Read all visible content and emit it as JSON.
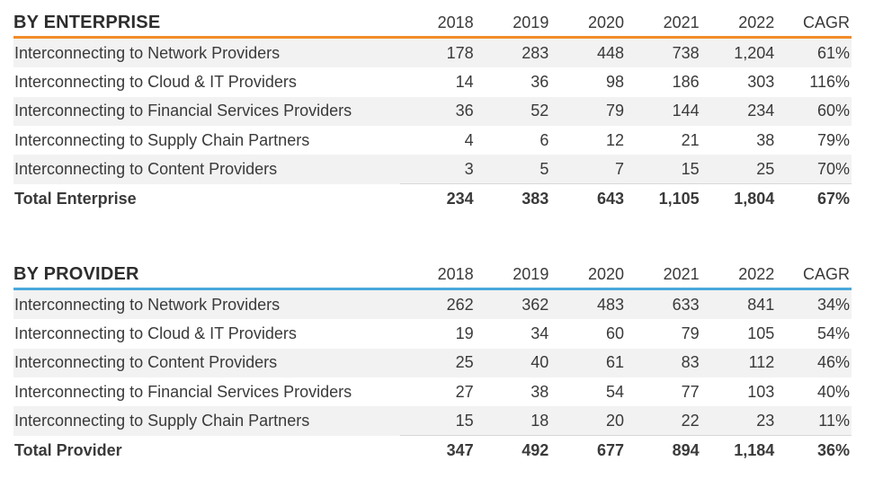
{
  "chart_data": [
    {
      "type": "table",
      "title": "BY ENTERPRISE",
      "columns": [
        "2018",
        "2019",
        "2020",
        "2021",
        "2022",
        "CAGR"
      ],
      "rows": [
        {
          "label": "Interconnecting to Network Providers",
          "values": [
            "178",
            "283",
            "448",
            "738",
            "1,204",
            "61%"
          ]
        },
        {
          "label": "Interconnecting to Cloud & IT Providers",
          "values": [
            "14",
            "36",
            "98",
            "186",
            "303",
            "116%"
          ]
        },
        {
          "label": "Interconnecting to Financial Services Providers",
          "values": [
            "36",
            "52",
            "79",
            "144",
            "234",
            "60%"
          ]
        },
        {
          "label": "Interconnecting to Supply Chain Partners",
          "values": [
            "4",
            "6",
            "12",
            "21",
            "38",
            "79%"
          ]
        },
        {
          "label": "Interconnecting to Content Providers",
          "values": [
            "3",
            "5",
            "7",
            "15",
            "25",
            "70%"
          ]
        }
      ],
      "total": {
        "label": "Total Enterprise",
        "values": [
          "234",
          "383",
          "643",
          "1,105",
          "1,804",
          "67%"
        ]
      },
      "accent_color": "#f28c2a"
    },
    {
      "type": "table",
      "title": "BY PROVIDER",
      "columns": [
        "2018",
        "2019",
        "2020",
        "2021",
        "2022",
        "CAGR"
      ],
      "rows": [
        {
          "label": "Interconnecting to Network Providers",
          "values": [
            "262",
            "362",
            "483",
            "633",
            "841",
            "34%"
          ]
        },
        {
          "label": "Interconnecting to Cloud & IT Providers",
          "values": [
            "19",
            "34",
            "60",
            "79",
            "105",
            "54%"
          ]
        },
        {
          "label": "Interconnecting to Content Providers",
          "values": [
            "25",
            "40",
            "61",
            "83",
            "112",
            "46%"
          ]
        },
        {
          "label": "Interconnecting to Financial Services Providers",
          "values": [
            "27",
            "38",
            "54",
            "77",
            "103",
            "40%"
          ]
        },
        {
          "label": "Interconnecting to Supply Chain Partners",
          "values": [
            "15",
            "18",
            "20",
            "22",
            "23",
            "11%"
          ]
        }
      ],
      "total": {
        "label": "Total Provider",
        "values": [
          "347",
          "492",
          "677",
          "894",
          "1,184",
          "36%"
        ]
      },
      "accent_color": "#4aa8dc"
    }
  ]
}
